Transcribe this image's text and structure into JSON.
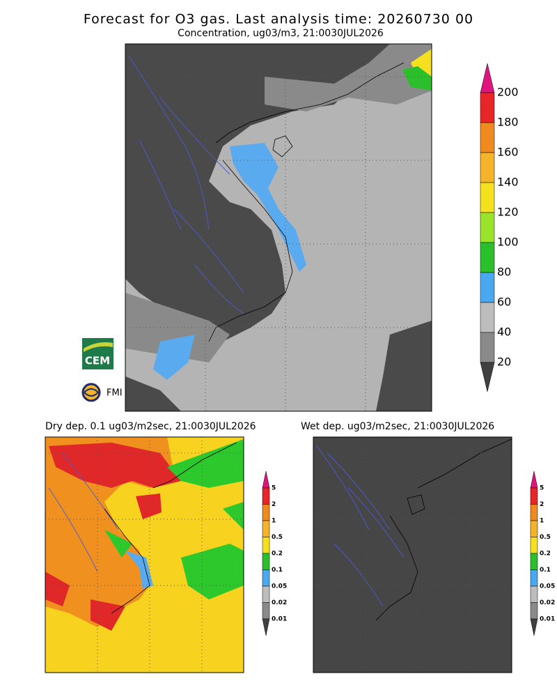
{
  "header": {
    "title": "Forecast for O3 gas. Last analysis time: 20260730 00",
    "subtitle": "Concentration, ug03/m3, 21:0030JUL2026"
  },
  "colorbar": {
    "labels": [
      200,
      180,
      160,
      140,
      120,
      100,
      80,
      60,
      40,
      20
    ]
  },
  "logos": {
    "cem": "CEM",
    "fmi": "FMI"
  },
  "panels": [
    {
      "title": "Dry dep. 0.1 ug03/m2sec, 21:0030JUL2026",
      "labels": [
        5,
        2,
        1,
        0.5,
        0.2,
        0.1,
        0.05,
        0.02,
        0.01
      ]
    },
    {
      "title": "Wet dep. ug03/m2sec, 21:0030JUL2026",
      "labels": [
        5,
        2,
        1,
        0.5,
        0.2,
        0.1,
        0.05,
        0.02,
        0.01
      ]
    }
  ]
}
